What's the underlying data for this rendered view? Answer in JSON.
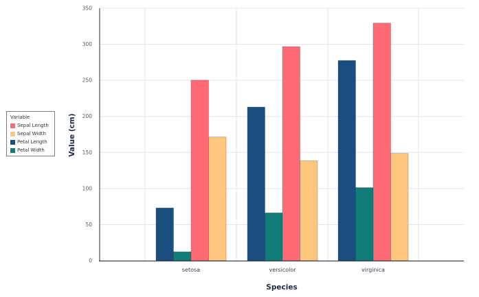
{
  "chart_data": {
    "type": "bar",
    "title": "",
    "xlabel": "Species",
    "ylabel": "Value (cm)",
    "ylim": [
      0,
      350
    ],
    "yticks": [
      0,
      50,
      100,
      150,
      200,
      250,
      300,
      350
    ],
    "grid": true,
    "categories": [
      "setosa",
      "versicolor",
      "virginica"
    ],
    "series": [
      {
        "name": "Petal Length",
        "color": "#1a4e7e",
        "values": [
          73.1,
          213.0,
          277.6
        ]
      },
      {
        "name": "Petal Width",
        "color": "#127c78",
        "values": [
          12.3,
          66.3,
          101.3
        ]
      },
      {
        "name": "Sepal Length",
        "color": "#ff6b74",
        "values": [
          250.3,
          296.8,
          329.4
        ]
      },
      {
        "name": "Sepal Width",
        "color": "#ffc67d",
        "values": [
          171.4,
          138.5,
          148.7
        ]
      }
    ],
    "legend": {
      "title": "Variable",
      "placement": "left",
      "items": [
        {
          "label": "Sepal Length",
          "color": "#ff6b74"
        },
        {
          "label": "Sepal Width",
          "color": "#ffc67d"
        },
        {
          "label": "Petal Length",
          "color": "#1a4e7e"
        },
        {
          "label": "Petal Width",
          "color": "#127c78"
        }
      ]
    }
  }
}
